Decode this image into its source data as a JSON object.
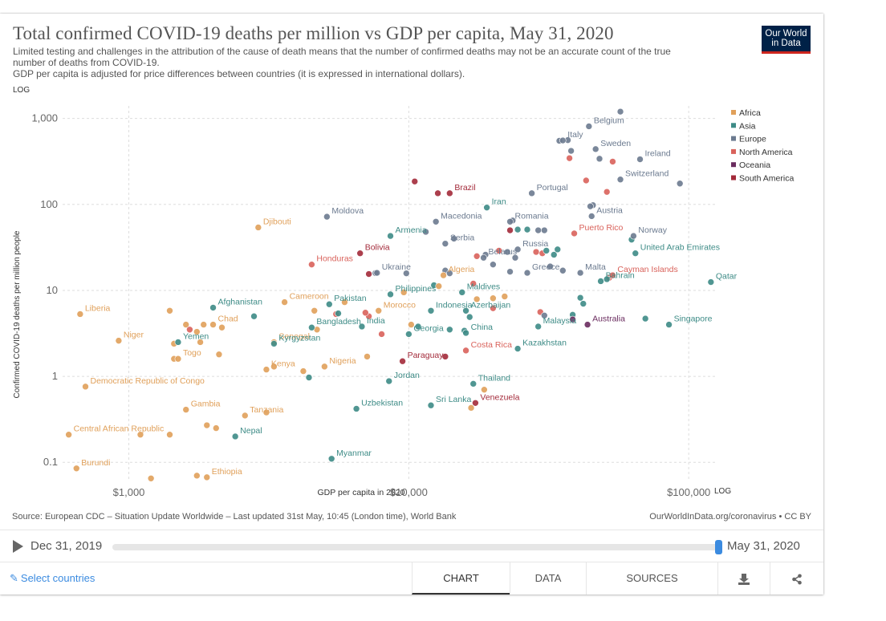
{
  "header": {
    "title": "Total confirmed COVID-19 deaths per million vs GDP per capita, May 31, 2020",
    "subtitle_line1": "Limited testing and challenges in the attribution of the cause of death means that the number of confirmed deaths may not be an accurate count of the true",
    "subtitle_line2": "number of deaths from COVID-19.",
    "subtitle_line3": "GDP per capita is adjusted for price differences between countries (it is expressed in international dollars).",
    "logo_line1": "Our World",
    "logo_line2": "in Data"
  },
  "colors": {
    "Africa": "#e0a05a",
    "Asia": "#3d8b86",
    "Europe": "#6b7a8f",
    "North America": "#d9625b",
    "Oceania": "#6a2c5f",
    "South America": "#a32a3a"
  },
  "chart_data": {
    "type": "scatter",
    "title": "Total confirmed COVID-19 deaths per million vs GDP per capita, May 31, 2020",
    "xlabel": "GDP per capita in 2020",
    "ylabel": "Confirmed COVID-19 deaths per million people",
    "xscale": "LOG",
    "yscale": "LOG",
    "xlim": [
      580,
      125000
    ],
    "ylim": [
      0.06,
      1400
    ],
    "xticks": [
      1000,
      10000,
      100000
    ],
    "xtick_labels": [
      "$1,000",
      "$10,000",
      "$100,000"
    ],
    "yticks": [
      0.1,
      1,
      10,
      100,
      1000
    ],
    "ytick_labels": [
      "0.1",
      "1",
      "10",
      "100",
      "1,000"
    ],
    "legend": [
      "Africa",
      "Asia",
      "Europe",
      "North America",
      "Oceania",
      "South America"
    ],
    "legend_position": "right",
    "points": [
      {
        "label": "Belgium",
        "region": "Europe",
        "x": 44000,
        "y": 810
      },
      {
        "label": "Italy",
        "region": "Europe",
        "x": 35500,
        "y": 555
      },
      {
        "label": "Sweden",
        "region": "Europe",
        "x": 46500,
        "y": 440
      },
      {
        "label": "Ireland",
        "region": "Europe",
        "x": 67000,
        "y": 335
      },
      {
        "label": "Switzerland",
        "region": "Europe",
        "x": 57000,
        "y": 195
      },
      {
        "label": "Portugal",
        "region": "Europe",
        "x": 27500,
        "y": 135
      },
      {
        "label": "Brazil",
        "region": "South America",
        "x": 14000,
        "y": 135
      },
      {
        "label": "Iran",
        "region": "Asia",
        "x": 19000,
        "y": 92
      },
      {
        "label": "Austria",
        "region": "Europe",
        "x": 45000,
        "y": 73
      },
      {
        "label": "Moldova",
        "region": "Europe",
        "x": 5100,
        "y": 72
      },
      {
        "label": "Macedonia",
        "region": "Europe",
        "x": 12500,
        "y": 63
      },
      {
        "label": "Romania",
        "region": "Europe",
        "x": 23000,
        "y": 63
      },
      {
        "label": "Djibouti",
        "region": "Africa",
        "x": 2900,
        "y": 54
      },
      {
        "label": "Armenia",
        "region": "Asia",
        "x": 8600,
        "y": 43
      },
      {
        "label": "Puerto Rico",
        "region": "North America",
        "x": 39000,
        "y": 46
      },
      {
        "label": "Norway",
        "region": "Europe",
        "x": 63500,
        "y": 43
      },
      {
        "label": "Serbia",
        "region": "Europe",
        "x": 13500,
        "y": 35
      },
      {
        "label": "Russia",
        "region": "Europe",
        "x": 24500,
        "y": 30
      },
      {
        "label": "Bolivia",
        "region": "South America",
        "x": 6700,
        "y": 27
      },
      {
        "label": "Belarus",
        "region": "Europe",
        "x": 18500,
        "y": 24
      },
      {
        "label": "United Arab Emirates",
        "region": "Asia",
        "x": 64500,
        "y": 27
      },
      {
        "label": "Honduras",
        "region": "North America",
        "x": 4500,
        "y": 20
      },
      {
        "label": "Greece",
        "region": "Europe",
        "x": 26500,
        "y": 16
      },
      {
        "label": "Malta",
        "region": "Europe",
        "x": 41000,
        "y": 16
      },
      {
        "label": "Cayman Islands",
        "region": "North America",
        "x": 53500,
        "y": 15
      },
      {
        "label": "Ukraine",
        "region": "Europe",
        "x": 7700,
        "y": 16
      },
      {
        "label": "Algeria",
        "region": "Africa",
        "x": 13300,
        "y": 15
      },
      {
        "label": "Qatar",
        "region": "Asia",
        "x": 120000,
        "y": 12.5
      },
      {
        "label": "Bahrain",
        "region": "Asia",
        "x": 48500,
        "y": 12.8
      },
      {
        "label": "Maldives",
        "region": "Asia",
        "x": 15500,
        "y": 9.5
      },
      {
        "label": "Philippines",
        "region": "Asia",
        "x": 8600,
        "y": 9
      },
      {
        "label": "Afghanistan",
        "region": "Asia",
        "x": 2000,
        "y": 6.3
      },
      {
        "label": "Cameroon",
        "region": "Africa",
        "x": 3600,
        "y": 7.3
      },
      {
        "label": "Pakistan",
        "region": "Asia",
        "x": 5200,
        "y": 6.9
      },
      {
        "label": "Morocco",
        "region": "Africa",
        "x": 7800,
        "y": 5.8
      },
      {
        "label": "Indonesia",
        "region": "Asia",
        "x": 12000,
        "y": 5.8
      },
      {
        "label": "Azerbaijan",
        "region": "Asia",
        "x": 16000,
        "y": 5.8
      },
      {
        "label": "Liberia",
        "region": "Africa",
        "x": 670,
        "y": 5.3
      },
      {
        "label": "Chad",
        "region": "Africa",
        "x": 2000,
        "y": 4
      },
      {
        "label": "Bangladesh",
        "region": "Asia",
        "x": 4500,
        "y": 3.7
      },
      {
        "label": "India",
        "region": "Asia",
        "x": 6800,
        "y": 3.8
      },
      {
        "label": "China",
        "region": "Asia",
        "x": 16000,
        "y": 3.2
      },
      {
        "label": "Georgia",
        "region": "Asia",
        "x": 10000,
        "y": 3.1
      },
      {
        "label": "Malaysia",
        "region": "Asia",
        "x": 29000,
        "y": 3.8
      },
      {
        "label": "Australia",
        "region": "Oceania",
        "x": 43500,
        "y": 4
      },
      {
        "label": "Singapore",
        "region": "Asia",
        "x": 85000,
        "y": 4
      },
      {
        "label": "Niger",
        "region": "Africa",
        "x": 920,
        "y": 2.6
      },
      {
        "label": "Yemen",
        "region": "Asia",
        "x": 1500,
        "y": 2.5
      },
      {
        "label": "Senegal",
        "region": "Africa",
        "x": 3300,
        "y": 2.5
      },
      {
        "label": "Kyrgyzstan",
        "region": "Asia",
        "x": 3300,
        "y": 2.4
      },
      {
        "label": "Costa Rica",
        "region": "North America",
        "x": 16000,
        "y": 2
      },
      {
        "label": "Kazakhstan",
        "region": "Asia",
        "x": 24500,
        "y": 2.1
      },
      {
        "label": "Togo",
        "region": "Africa",
        "x": 1500,
        "y": 1.6
      },
      {
        "label": "Paraguay",
        "region": "South America",
        "x": 9500,
        "y": 1.5
      },
      {
        "label": "Kenya",
        "region": "Africa",
        "x": 3100,
        "y": 1.2
      },
      {
        "label": "Nigeria",
        "region": "Africa",
        "x": 5000,
        "y": 1.3
      },
      {
        "label": "Jordan",
        "region": "Asia",
        "x": 8500,
        "y": 0.88
      },
      {
        "label": "Democratic Republic of Congo",
        "region": "Africa",
        "x": 700,
        "y": 0.76
      },
      {
        "label": "Thailand",
        "region": "Asia",
        "x": 17000,
        "y": 0.82
      },
      {
        "label": "Gambia",
        "region": "Africa",
        "x": 1600,
        "y": 0.41
      },
      {
        "label": "Tanzania",
        "region": "Africa",
        "x": 2600,
        "y": 0.35
      },
      {
        "label": "Uzbekistan",
        "region": "Asia",
        "x": 6500,
        "y": 0.42
      },
      {
        "label": "Sri Lanka",
        "region": "Asia",
        "x": 12000,
        "y": 0.46
      },
      {
        "label": "Venezuela",
        "region": "South America",
        "x": 17300,
        "y": 0.49
      },
      {
        "label": "Central African Republic",
        "region": "Africa",
        "x": 610,
        "y": 0.21
      },
      {
        "label": "Nepal",
        "region": "Asia",
        "x": 2400,
        "y": 0.2
      },
      {
        "label": "Myanmar",
        "region": "Asia",
        "x": 5300,
        "y": 0.11
      },
      {
        "label": "Burundi",
        "region": "Africa",
        "x": 650,
        "y": 0.085
      },
      {
        "label": "Ethiopia",
        "region": "Africa",
        "x": 1900,
        "y": 0.067
      },
      {
        "label": "",
        "region": "Europe",
        "x": 57000,
        "y": 1200
      },
      {
        "label": "",
        "region": "Europe",
        "x": 34500,
        "y": 550
      },
      {
        "label": "",
        "region": "Europe",
        "x": 37000,
        "y": 560
      },
      {
        "label": "",
        "region": "Europe",
        "x": 38000,
        "y": 420
      },
      {
        "label": "",
        "region": "North America",
        "x": 37500,
        "y": 345
      },
      {
        "label": "",
        "region": "Europe",
        "x": 48000,
        "y": 340
      },
      {
        "label": "",
        "region": "North America",
        "x": 53500,
        "y": 315
      },
      {
        "label": "",
        "region": "Europe",
        "x": 93000,
        "y": 175
      },
      {
        "label": "",
        "region": "North America",
        "x": 43000,
        "y": 190
      },
      {
        "label": "",
        "region": "North America",
        "x": 51000,
        "y": 140
      },
      {
        "label": "",
        "region": "South America",
        "x": 10500,
        "y": 185
      },
      {
        "label": "",
        "region": "South America",
        "x": 12700,
        "y": 135
      },
      {
        "label": "",
        "region": "Europe",
        "x": 45500,
        "y": 98
      },
      {
        "label": "",
        "region": "Europe",
        "x": 44500,
        "y": 95
      },
      {
        "label": "",
        "region": "Europe",
        "x": 23500,
        "y": 65
      },
      {
        "label": "",
        "region": "South America",
        "x": 23000,
        "y": 50
      },
      {
        "label": "",
        "region": "Asia",
        "x": 24500,
        "y": 51
      },
      {
        "label": "",
        "region": "Asia",
        "x": 26500,
        "y": 51
      },
      {
        "label": "",
        "region": "Europe",
        "x": 29000,
        "y": 50
      },
      {
        "label": "",
        "region": "Europe",
        "x": 30500,
        "y": 50
      },
      {
        "label": "",
        "region": "Europe",
        "x": 11500,
        "y": 48
      },
      {
        "label": "",
        "region": "Asia",
        "x": 62500,
        "y": 39
      },
      {
        "label": "",
        "region": "Europe",
        "x": 14500,
        "y": 40
      },
      {
        "label": "",
        "region": "Europe",
        "x": 22500,
        "y": 28
      },
      {
        "label": "",
        "region": "North America",
        "x": 28500,
        "y": 28
      },
      {
        "label": "",
        "region": "North America",
        "x": 30000,
        "y": 27
      },
      {
        "label": "",
        "region": "Asia",
        "x": 31000,
        "y": 29
      },
      {
        "label": "",
        "region": "Asia",
        "x": 33000,
        "y": 26
      },
      {
        "label": "",
        "region": "Asia",
        "x": 34000,
        "y": 30
      },
      {
        "label": "",
        "region": "North America",
        "x": 21000,
        "y": 29
      },
      {
        "label": "",
        "region": "Europe",
        "x": 18800,
        "y": 26
      },
      {
        "label": "",
        "region": "North America",
        "x": 17500,
        "y": 25
      },
      {
        "label": "",
        "region": "Europe",
        "x": 20000,
        "y": 20
      },
      {
        "label": "",
        "region": "Europe",
        "x": 24000,
        "y": 24
      },
      {
        "label": "",
        "region": "Europe",
        "x": 32000,
        "y": 19
      },
      {
        "label": "",
        "region": "Europe",
        "x": 23000,
        "y": 16.5
      },
      {
        "label": "",
        "region": "Europe",
        "x": 35500,
        "y": 17
      },
      {
        "label": "",
        "region": "North America",
        "x": 52000,
        "y": 14
      },
      {
        "label": "",
        "region": "Asia",
        "x": 51000,
        "y": 13.5
      },
      {
        "label": "",
        "region": "Europe",
        "x": 9800,
        "y": 15.8
      },
      {
        "label": "",
        "region": "South America",
        "x": 7200,
        "y": 15.5
      },
      {
        "label": "",
        "region": "Europe",
        "x": 7600,
        "y": 15.9
      },
      {
        "label": "",
        "region": "Asia",
        "x": 12300,
        "y": 11.5
      },
      {
        "label": "",
        "region": "Africa",
        "x": 12800,
        "y": 11.2
      },
      {
        "label": "",
        "region": "Europe",
        "x": 13500,
        "y": 17
      },
      {
        "label": "",
        "region": "Europe",
        "x": 14000,
        "y": 15.8
      },
      {
        "label": "",
        "region": "North America",
        "x": 17000,
        "y": 12
      },
      {
        "label": "",
        "region": "Africa",
        "x": 9600,
        "y": 9.5
      },
      {
        "label": "",
        "region": "Africa",
        "x": 17500,
        "y": 7.9
      },
      {
        "label": "",
        "region": "Africa",
        "x": 22000,
        "y": 8.5
      },
      {
        "label": "",
        "region": "Africa",
        "x": 20000,
        "y": 8.1
      },
      {
        "label": "",
        "region": "North America",
        "x": 20000,
        "y": 6.2
      },
      {
        "label": "",
        "region": "Asia",
        "x": 41000,
        "y": 8.2
      },
      {
        "label": "",
        "region": "Asia",
        "x": 42000,
        "y": 7
      },
      {
        "label": "",
        "region": "Asia",
        "x": 70000,
        "y": 4.7
      },
      {
        "label": "",
        "region": "Asia",
        "x": 38500,
        "y": 5.2
      },
      {
        "label": "",
        "region": "Oceania",
        "x": 38500,
        "y": 4.6
      },
      {
        "label": "",
        "region": "North America",
        "x": 29500,
        "y": 5.6
      },
      {
        "label": "",
        "region": "Europe",
        "x": 30500,
        "y": 5.1
      },
      {
        "label": "",
        "region": "North America",
        "x": 7200,
        "y": 5
      },
      {
        "label": "",
        "region": "North America",
        "x": 7000,
        "y": 5.5
      },
      {
        "label": "",
        "region": "North America",
        "x": 5500,
        "y": 5.3
      },
      {
        "label": "",
        "region": "Asia",
        "x": 5600,
        "y": 5.4
      },
      {
        "label": "",
        "region": "Africa",
        "x": 4600,
        "y": 5.8
      },
      {
        "label": "",
        "region": "Africa",
        "x": 5900,
        "y": 7.3
      },
      {
        "label": "",
        "region": "Asia",
        "x": 2800,
        "y": 5
      },
      {
        "label": "",
        "region": "Africa",
        "x": 1400,
        "y": 5.8
      },
      {
        "label": "",
        "region": "Africa",
        "x": 1600,
        "y": 4
      },
      {
        "label": "",
        "region": "Africa",
        "x": 1750,
        "y": 3.3
      },
      {
        "label": "",
        "region": "Africa",
        "x": 1850,
        "y": 4
      },
      {
        "label": "",
        "region": "Africa",
        "x": 2150,
        "y": 3.7
      },
      {
        "label": "",
        "region": "North America",
        "x": 1650,
        "y": 3.5
      },
      {
        "label": "",
        "region": "Africa",
        "x": 1450,
        "y": 2.4
      },
      {
        "label": "",
        "region": "Africa",
        "x": 1800,
        "y": 2.5
      },
      {
        "label": "",
        "region": "Africa",
        "x": 2100,
        "y": 1.8
      },
      {
        "label": "",
        "region": "Africa",
        "x": 1450,
        "y": 1.6
      },
      {
        "label": "",
        "region": "Africa",
        "x": 4700,
        "y": 3.5
      },
      {
        "label": "",
        "region": "North America",
        "x": 8000,
        "y": 3.1
      },
      {
        "label": "",
        "region": "Africa",
        "x": 10200,
        "y": 4
      },
      {
        "label": "",
        "region": "Asia",
        "x": 10800,
        "y": 3.8
      },
      {
        "label": "",
        "region": "Asia",
        "x": 14000,
        "y": 3.5
      },
      {
        "label": "",
        "region": "Asia",
        "x": 16500,
        "y": 4.9
      },
      {
        "label": "",
        "region": "Asia",
        "x": 15800,
        "y": 3.4
      },
      {
        "label": "",
        "region": "Africa",
        "x": 7100,
        "y": 1.7
      },
      {
        "label": "",
        "region": "South America",
        "x": 13500,
        "y": 1.7
      },
      {
        "label": "",
        "region": "Africa",
        "x": 3300,
        "y": 1.3
      },
      {
        "label": "",
        "region": "Africa",
        "x": 4200,
        "y": 1.15
      },
      {
        "label": "",
        "region": "Asia",
        "x": 4400,
        "y": 0.97
      },
      {
        "label": "",
        "region": "Africa",
        "x": 18600,
        "y": 0.7
      },
      {
        "label": "",
        "region": "Africa",
        "x": 16700,
        "y": 0.43
      },
      {
        "label": "",
        "region": "Africa",
        "x": 3100,
        "y": 0.38
      },
      {
        "label": "",
        "region": "Africa",
        "x": 1900,
        "y": 0.27
      },
      {
        "label": "",
        "region": "Africa",
        "x": 2050,
        "y": 0.25
      },
      {
        "label": "",
        "region": "Africa",
        "x": 1400,
        "y": 0.21
      },
      {
        "label": "",
        "region": "Africa",
        "x": 1100,
        "y": 0.21
      },
      {
        "label": "",
        "region": "Africa",
        "x": 1200,
        "y": 0.065
      },
      {
        "label": "",
        "region": "Africa",
        "x": 1750,
        "y": 0.07
      }
    ]
  },
  "axes": {
    "log_badge_y": "LOG",
    "log_badge_x": "LOG",
    "xlabel": "GDP per capita in 2020",
    "ylabel": "Confirmed COVID-19 deaths per million people"
  },
  "footer": {
    "source": "Source: European CDC – Situation Update Worldwide – Last updated 31st May, 10:45 (London time), World Bank",
    "credit": "OurWorldInData.org/coronavirus • CC BY"
  },
  "timeline": {
    "start": "Dec 31, 2019",
    "end": "May 31, 2020"
  },
  "controls": {
    "select_countries": "Select countries",
    "tab_chart": "CHART",
    "tab_data": "DATA",
    "tab_sources": "SOURCES"
  }
}
